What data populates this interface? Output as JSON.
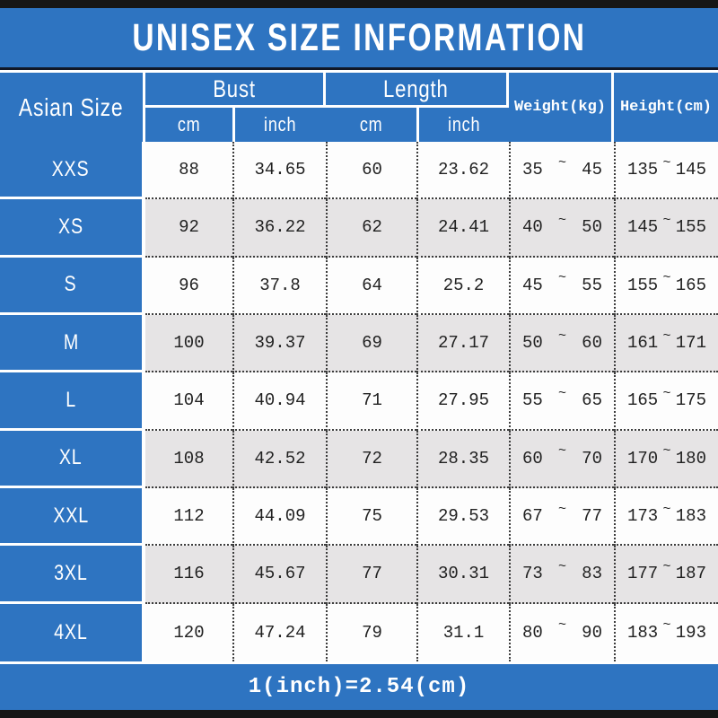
{
  "title": "UNISEX SIZE INFORMATION",
  "footer": "1(inch)=2.54(cm)",
  "colors": {
    "header_blue": "#2e74c1",
    "alt_row_gray": "#e6e4e5",
    "row_white": "#fdfdfd",
    "border_black": "#161616",
    "dotted_border": "#3c3c3c",
    "text_white": "#ffffff",
    "number_dark": "#212121"
  },
  "table": {
    "size_header": "Asian Size",
    "tilde": "~",
    "group_headers": [
      {
        "label": "Bust",
        "sub": [
          "cm",
          "inch"
        ]
      },
      {
        "label": "Length",
        "sub": [
          "cm",
          "inch"
        ]
      }
    ],
    "span_headers": [
      "Weight(kg)",
      "Height(cm)"
    ],
    "rows": [
      {
        "size": "XXS",
        "bust_cm": "88",
        "bust_inch": "34.65",
        "length_cm": "60",
        "length_inch": "23.62",
        "weight_min": "35",
        "weight_max": "45",
        "height_min": "135",
        "height_max": "145"
      },
      {
        "size": "XS",
        "bust_cm": "92",
        "bust_inch": "36.22",
        "length_cm": "62",
        "length_inch": "24.41",
        "weight_min": "40",
        "weight_max": "50",
        "height_min": "145",
        "height_max": "155"
      },
      {
        "size": "S",
        "bust_cm": "96",
        "bust_inch": "37.8",
        "length_cm": "64",
        "length_inch": "25.2",
        "weight_min": "45",
        "weight_max": "55",
        "height_min": "155",
        "height_max": "165"
      },
      {
        "size": "M",
        "bust_cm": "100",
        "bust_inch": "39.37",
        "length_cm": "69",
        "length_inch": "27.17",
        "weight_min": "50",
        "weight_max": "60",
        "height_min": "161",
        "height_max": "171"
      },
      {
        "size": "L",
        "bust_cm": "104",
        "bust_inch": "40.94",
        "length_cm": "71",
        "length_inch": "27.95",
        "weight_min": "55",
        "weight_max": "65",
        "height_min": "165",
        "height_max": "175"
      },
      {
        "size": "XL",
        "bust_cm": "108",
        "bust_inch": "42.52",
        "length_cm": "72",
        "length_inch": "28.35",
        "weight_min": "60",
        "weight_max": "70",
        "height_min": "170",
        "height_max": "180"
      },
      {
        "size": "XXL",
        "bust_cm": "112",
        "bust_inch": "44.09",
        "length_cm": "75",
        "length_inch": "29.53",
        "weight_min": "67",
        "weight_max": "77",
        "height_min": "173",
        "height_max": "183"
      },
      {
        "size": "3XL",
        "bust_cm": "116",
        "bust_inch": "45.67",
        "length_cm": "77",
        "length_inch": "30.31",
        "weight_min": "73",
        "weight_max": "83",
        "height_min": "177",
        "height_max": "187"
      },
      {
        "size": "4XL",
        "bust_cm": "120",
        "bust_inch": "47.24",
        "length_cm": "79",
        "length_inch": "31.1",
        "weight_min": "80",
        "weight_max": "90",
        "height_min": "183",
        "height_max": "193"
      }
    ]
  },
  "chart_data": {
    "type": "table",
    "title": "UNISEX SIZE INFORMATION",
    "columns": [
      "Asian Size",
      "Bust cm",
      "Bust inch",
      "Length cm",
      "Length inch",
      "Weight(kg)",
      "Height(cm)"
    ],
    "rows": [
      [
        "XXS",
        "88",
        "34.65",
        "60",
        "23.62",
        "35~45",
        "135~145"
      ],
      [
        "XS",
        "92",
        "36.22",
        "62",
        "24.41",
        "40~50",
        "145~155"
      ],
      [
        "S",
        "96",
        "37.8",
        "64",
        "25.2",
        "45~55",
        "155~165"
      ],
      [
        "M",
        "100",
        "39.37",
        "69",
        "27.17",
        "50~60",
        "161~171"
      ],
      [
        "L",
        "104",
        "40.94",
        "71",
        "27.95",
        "55~65",
        "165~175"
      ],
      [
        "XL",
        "108",
        "42.52",
        "72",
        "28.35",
        "60~70",
        "170~180"
      ],
      [
        "XXL",
        "112",
        "44.09",
        "75",
        "29.53",
        "67~77",
        "173~183"
      ],
      [
        "3XL",
        "116",
        "45.67",
        "77",
        "30.31",
        "73~83",
        "177~187"
      ],
      [
        "4XL",
        "120",
        "47.24",
        "79",
        "31.1",
        "80~90",
        "183~193"
      ]
    ],
    "footnote": "1(inch)=2.54(cm)"
  }
}
